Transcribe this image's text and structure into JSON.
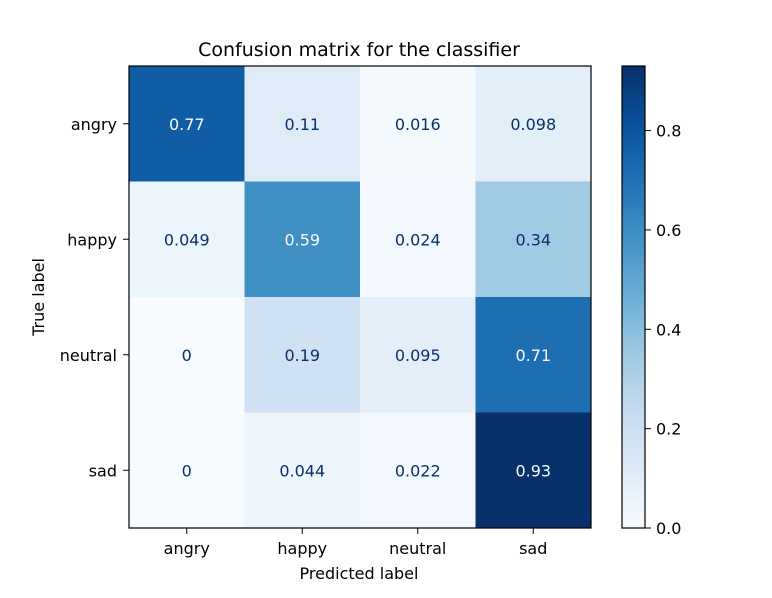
{
  "chart_data": {
    "type": "heatmap",
    "title": "Confusion matrix for the classifier",
    "xlabel": "Predicted label",
    "ylabel": "True label",
    "x_categories": [
      "angry",
      "happy",
      "neutral",
      "sad"
    ],
    "y_categories": [
      "angry",
      "happy",
      "neutral",
      "sad"
    ],
    "values": [
      [
        0.77,
        0.11,
        0.016,
        0.098
      ],
      [
        0.049,
        0.59,
        0.024,
        0.34
      ],
      [
        0,
        0.19,
        0.095,
        0.71
      ],
      [
        0,
        0.044,
        0.022,
        0.93
      ]
    ],
    "cell_labels": [
      [
        "0.77",
        "0.11",
        "0.016",
        "0.098"
      ],
      [
        "0.049",
        "0.59",
        "0.024",
        "0.34"
      ],
      [
        "0",
        "0.19",
        "0.095",
        "0.71"
      ],
      [
        "0",
        "0.044",
        "0.022",
        "0.93"
      ]
    ],
    "colormap": "Blues",
    "vmin": 0,
    "vmax": 0.93,
    "colorbar": {
      "ticks": [
        0.0,
        0.2,
        0.4,
        0.6,
        0.8
      ],
      "tick_labels": [
        "0.0",
        "0.2",
        "0.4",
        "0.6",
        "0.8"
      ]
    }
  }
}
